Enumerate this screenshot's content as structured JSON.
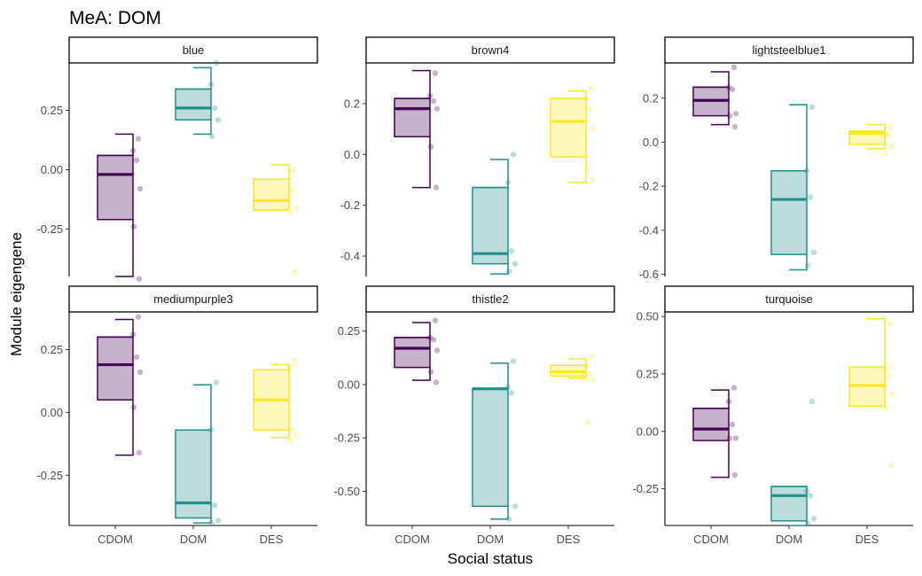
{
  "chart_data": {
    "type": "boxplot",
    "title": "MeA: DOM",
    "xlabel": "Social status",
    "ylabel": "Module eigengene",
    "categories": [
      "CDOM",
      "DOM",
      "DES"
    ],
    "colors": {
      "CDOM": "#440154",
      "DOM": "#21908C",
      "DES": "#FDE725"
    },
    "facets": [
      {
        "name": "blue",
        "ylim": [
          -0.45,
          0.45
        ],
        "yticks": [
          -0.25,
          0.0,
          0.25
        ],
        "ytick_labels": [
          "-0.25",
          "0.00",
          "0.25"
        ],
        "boxes": [
          {
            "group": "CDOM",
            "min": -0.45,
            "q1": -0.21,
            "median": -0.02,
            "q3": 0.06,
            "max": 0.15
          },
          {
            "group": "DOM",
            "min": 0.15,
            "q1": 0.21,
            "median": 0.26,
            "q3": 0.34,
            "max": 0.43
          },
          {
            "group": "DES",
            "min": -0.17,
            "q1": -0.17,
            "median": -0.13,
            "q3": -0.04,
            "max": 0.02
          }
        ],
        "points": [
          {
            "group": "CDOM",
            "values": [
              0.13,
              0.08,
              0.04,
              -0.08,
              -0.24,
              -0.46
            ]
          },
          {
            "group": "DOM",
            "values": [
              0.45,
              0.36,
              0.26,
              0.21,
              0.14
            ]
          },
          {
            "group": "DES",
            "values": [
              0.0,
              -0.01,
              -0.09,
              -0.16,
              -0.18,
              -0.43
            ]
          }
        ]
      },
      {
        "name": "brown4",
        "ylim": [
          -0.48,
          0.36
        ],
        "yticks": [
          -0.4,
          -0.2,
          0.0,
          0.2
        ],
        "ytick_labels": [
          "-0.4",
          "-0.2",
          "0.0",
          "0.2"
        ],
        "boxes": [
          {
            "group": "CDOM",
            "min": -0.13,
            "q1": 0.07,
            "median": 0.18,
            "q3": 0.22,
            "max": 0.33
          },
          {
            "group": "DOM",
            "min": -0.47,
            "q1": -0.43,
            "median": -0.39,
            "q3": -0.13,
            "max": -0.02
          },
          {
            "group": "DES",
            "min": -0.11,
            "q1": -0.01,
            "median": 0.13,
            "q3": 0.22,
            "max": 0.25
          }
        ],
        "points": [
          {
            "group": "CDOM",
            "values": [
              0.32,
              0.23,
              0.21,
              0.18,
              0.03,
              -0.13
            ]
          },
          {
            "group": "DOM",
            "values": [
              0.0,
              -0.11,
              -0.38,
              -0.43,
              -0.46
            ]
          },
          {
            "group": "DES",
            "values": [
              0.26,
              0.22,
              0.18,
              0.1,
              -0.06,
              -0.1
            ]
          }
        ]
      },
      {
        "name": "lightsteelblue1",
        "ylim": [
          -0.61,
          0.36
        ],
        "yticks": [
          -0.6,
          -0.4,
          -0.2,
          0.0,
          0.2
        ],
        "ytick_labels": [
          "-0.6",
          "-0.4",
          "-0.2",
          "0.0",
          "0.2"
        ],
        "boxes": [
          {
            "group": "CDOM",
            "min": 0.08,
            "q1": 0.12,
            "median": 0.19,
            "q3": 0.25,
            "max": 0.32
          },
          {
            "group": "DOM",
            "min": -0.58,
            "q1": -0.51,
            "median": -0.26,
            "q3": -0.13,
            "max": 0.17
          },
          {
            "group": "DES",
            "min": -0.03,
            "q1": -0.01,
            "median": 0.04,
            "q3": 0.05,
            "max": 0.08
          }
        ],
        "points": [
          {
            "group": "CDOM",
            "values": [
              0.34,
              0.25,
              0.24,
              0.13,
              0.12,
              0.07
            ]
          },
          {
            "group": "DOM",
            "values": [
              0.16,
              -0.13,
              -0.25,
              -0.5,
              -0.56
            ]
          },
          {
            "group": "DES",
            "values": [
              0.07,
              0.04,
              0.03,
              -0.02,
              -0.05
            ]
          }
        ]
      },
      {
        "name": "mediumpurple3",
        "ylim": [
          -0.45,
          0.4
        ],
        "yticks": [
          -0.25,
          0.0,
          0.25
        ],
        "ytick_labels": [
          "-0.25",
          "0.00",
          "0.25"
        ],
        "boxes": [
          {
            "group": "CDOM",
            "min": -0.17,
            "q1": 0.05,
            "median": 0.19,
            "q3": 0.3,
            "max": 0.37
          },
          {
            "group": "DOM",
            "min": -0.44,
            "q1": -0.42,
            "median": -0.36,
            "q3": -0.07,
            "max": 0.11
          },
          {
            "group": "DES",
            "min": -0.1,
            "q1": -0.07,
            "median": 0.05,
            "q3": 0.17,
            "max": 0.19
          }
        ],
        "points": [
          {
            "group": "CDOM",
            "values": [
              0.38,
              0.31,
              0.22,
              0.16,
              0.02,
              -0.16
            ]
          },
          {
            "group": "DOM",
            "values": [
              0.12,
              -0.07,
              -0.37,
              -0.43,
              -0.44
            ]
          },
          {
            "group": "DES",
            "values": [
              0.21,
              0.18,
              -0.07,
              -0.09,
              -0.11
            ]
          }
        ]
      },
      {
        "name": "thistle2",
        "ylim": [
          -0.66,
          0.34
        ],
        "yticks": [
          -0.5,
          -0.25,
          0.0,
          0.25
        ],
        "ytick_labels": [
          "-0.50",
          "-0.25",
          "0.00",
          "0.25"
        ],
        "boxes": [
          {
            "group": "CDOM",
            "min": 0.02,
            "q1": 0.08,
            "median": 0.17,
            "q3": 0.22,
            "max": 0.29
          },
          {
            "group": "DOM",
            "min": -0.63,
            "q1": -0.57,
            "median": -0.02,
            "q3": -0.02,
            "max": 0.1
          },
          {
            "group": "DES",
            "min": 0.03,
            "q1": 0.04,
            "median": 0.06,
            "q3": 0.09,
            "max": 0.12
          }
        ],
        "points": [
          {
            "group": "CDOM",
            "values": [
              0.3,
              0.22,
              0.21,
              0.16,
              0.06,
              0.01
            ]
          },
          {
            "group": "DOM",
            "values": [
              0.11,
              -0.01,
              -0.04,
              -0.57,
              -0.63
            ]
          },
          {
            "group": "DES",
            "values": [
              0.13,
              0.09,
              0.05,
              0.02,
              -0.18
            ]
          }
        ]
      },
      {
        "name": "turquoise",
        "ylim": [
          -0.41,
          0.52
        ],
        "yticks": [
          -0.25,
          0.0,
          0.25,
          0.5
        ],
        "ytick_labels": [
          "-0.25",
          "0.00",
          "0.25",
          "0.50"
        ],
        "boxes": [
          {
            "group": "CDOM",
            "min": -0.2,
            "q1": -0.04,
            "median": 0.01,
            "q3": 0.1,
            "max": 0.18
          },
          {
            "group": "DOM",
            "min": -0.41,
            "q1": -0.39,
            "median": -0.28,
            "q3": -0.24,
            "max": -0.24
          },
          {
            "group": "DES",
            "min": 0.11,
            "q1": 0.11,
            "median": 0.2,
            "q3": 0.28,
            "max": 0.49
          }
        ],
        "points": [
          {
            "group": "CDOM",
            "values": [
              0.19,
              0.13,
              0.03,
              -0.03,
              -0.03,
              -0.19
            ]
          },
          {
            "group": "DOM",
            "values": [
              0.13,
              -0.26,
              -0.28,
              -0.38,
              -0.4
            ]
          },
          {
            "group": "DES",
            "values": [
              0.47,
              0.27,
              0.24,
              0.16,
              0.1,
              -0.15
            ]
          }
        ]
      }
    ]
  }
}
